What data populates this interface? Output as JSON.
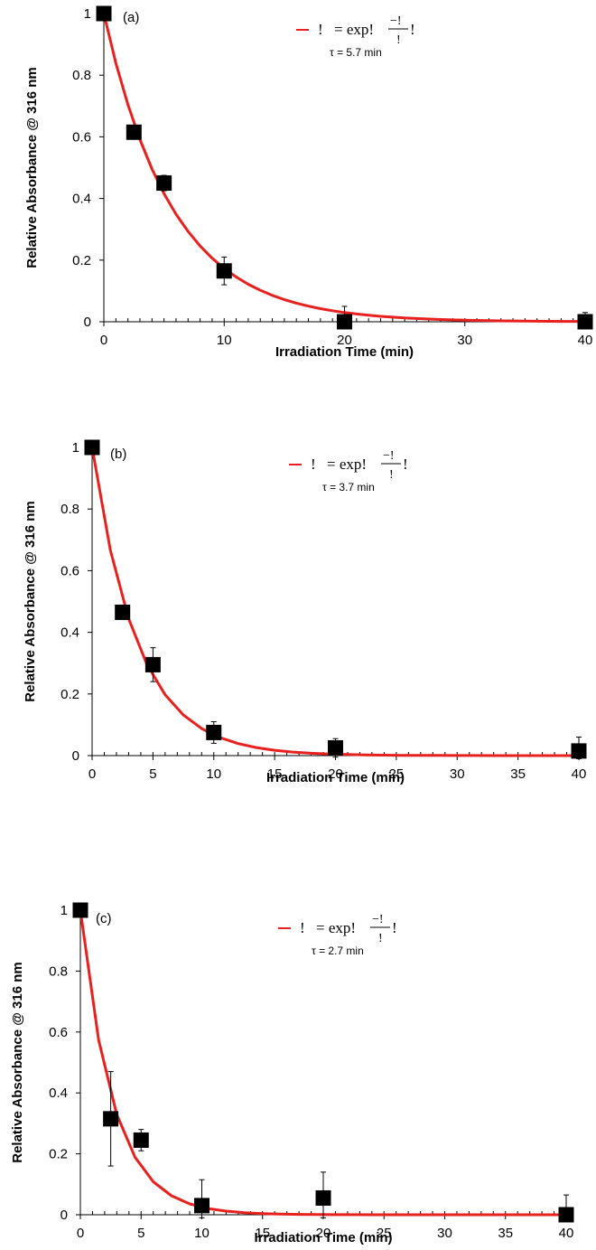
{
  "chart_data": [
    {
      "type": "scatter",
      "panel_label": "(a)",
      "xlabel": "Irradiation Time (min)",
      "ylabel": "Relative Absorbance @ 316 nm",
      "xlim": [
        0,
        40
      ],
      "ylim": [
        0,
        1
      ],
      "xticks": [
        0,
        10,
        20,
        30,
        40
      ],
      "yticks": [
        0,
        0.2,
        0.4,
        0.6,
        0.8,
        1
      ],
      "xtick_labels": [
        "0",
        "10",
        "20",
        "30",
        "40"
      ],
      "ytick_labels": [
        "0",
        "0.2",
        "0.4",
        "0.6",
        "0.8",
        "1"
      ],
      "minor_x_step": 1,
      "grid": false,
      "legend": {
        "placement": "top-center",
        "equation": {
          "lhs": "!",
          "eq": "= exp!",
          "num": "−!",
          "den": "!",
          "tail": "!"
        },
        "tau": "τ = 5.7 min"
      },
      "fit": {
        "model": "exp",
        "tau": 5.7,
        "samples": [
          0,
          1,
          2,
          3,
          4,
          5,
          6,
          7,
          8,
          9,
          10,
          11,
          12,
          13,
          14,
          15,
          16,
          17,
          18,
          19,
          20,
          21,
          22,
          23,
          24,
          25,
          26,
          27,
          28,
          29,
          30,
          31,
          32,
          33,
          34,
          35,
          36,
          37,
          38,
          39,
          40
        ]
      },
      "series": [
        {
          "x": [
            0,
            2.5,
            5,
            10,
            20,
            40
          ],
          "y": [
            1.0,
            0.615,
            0.45,
            0.165,
            0.0,
            0.0
          ],
          "err": [
            0,
            0.01,
            0.025,
            0.045,
            0.05,
            0.03
          ]
        }
      ]
    },
    {
      "type": "scatter",
      "panel_label": "(b)",
      "xlabel": "Irradiation Time (min)",
      "ylabel": "Relative Absorbance @ 316 nm",
      "xlim": [
        0,
        40
      ],
      "ylim": [
        0,
        1
      ],
      "xticks": [
        0,
        5,
        10,
        15,
        20,
        25,
        30,
        35,
        40
      ],
      "yticks": [
        0,
        0.2,
        0.4,
        0.6,
        0.8,
        1
      ],
      "xtick_labels": [
        "0",
        "5",
        "10",
        "15",
        "20",
        "25",
        "30",
        "35",
        "40"
      ],
      "ytick_labels": [
        "0",
        "0.2",
        "0.4",
        "0.6",
        "0.8",
        "1"
      ],
      "minor_x_step": 1,
      "grid": false,
      "legend": {
        "placement": "top-center",
        "equation": {
          "lhs": "!",
          "eq": "= exp!",
          "num": "−!",
          "den": "!",
          "tail": "!"
        },
        "tau": "τ = 3.7 min"
      },
      "fit": {
        "model": "exp",
        "tau": 3.7,
        "samples": [
          0,
          1.5,
          3,
          4.5,
          6,
          7.5,
          9,
          10.5,
          12,
          13.5,
          15,
          16.5,
          18,
          19.5,
          21,
          22.5,
          24,
          25.5,
          27,
          28.5,
          30,
          31.5,
          33,
          34.5,
          36,
          37.5,
          39,
          40
        ]
      },
      "series": [
        {
          "x": [
            0,
            2.5,
            5,
            10,
            20,
            40
          ],
          "y": [
            1.0,
            0.465,
            0.295,
            0.075,
            0.025,
            0.015
          ],
          "err": [
            0,
            0.01,
            0.055,
            0.035,
            0.03,
            0.045
          ]
        }
      ]
    },
    {
      "type": "scatter",
      "panel_label": "(c)",
      "xlabel": "Irradiation Time (min)",
      "ylabel": "Relative Absorbance @ 316 nm",
      "xlim": [
        0,
        40
      ],
      "ylim": [
        0,
        1
      ],
      "xticks": [
        0,
        5,
        10,
        15,
        20,
        25,
        30,
        35,
        40
      ],
      "yticks": [
        0,
        0.2,
        0.4,
        0.6,
        0.8,
        1
      ],
      "xtick_labels": [
        "0",
        "5",
        "10",
        "15",
        "20",
        "25",
        "30",
        "35",
        "40"
      ],
      "ytick_labels": [
        "0",
        "0.2",
        "0.4",
        "0.6",
        "0.8",
        "1"
      ],
      "minor_x_step": 1,
      "grid": false,
      "legend": {
        "placement": "top-center",
        "equation": {
          "lhs": "!",
          "eq": "= exp!",
          "num": "−!",
          "den": "!",
          "tail": "!"
        },
        "tau": "τ = 2.7 min"
      },
      "fit": {
        "model": "exp",
        "tau": 2.7,
        "samples": [
          0,
          1.5,
          3,
          4.5,
          6,
          7.5,
          9,
          10.5,
          12,
          13.5,
          15,
          16.5,
          18,
          19.5,
          21,
          22.5,
          24,
          25.5,
          27,
          28.5,
          30,
          31.5,
          33,
          34.5,
          36,
          37.5,
          39,
          40
        ]
      },
      "series": [
        {
          "x": [
            0,
            2.5,
            5,
            10,
            20,
            40
          ],
          "y": [
            1.0,
            0.315,
            0.245,
            0.03,
            0.055,
            0.0
          ],
          "err": [
            0,
            0.155,
            0.035,
            0.085,
            0.085,
            0.065
          ]
        }
      ]
    }
  ]
}
